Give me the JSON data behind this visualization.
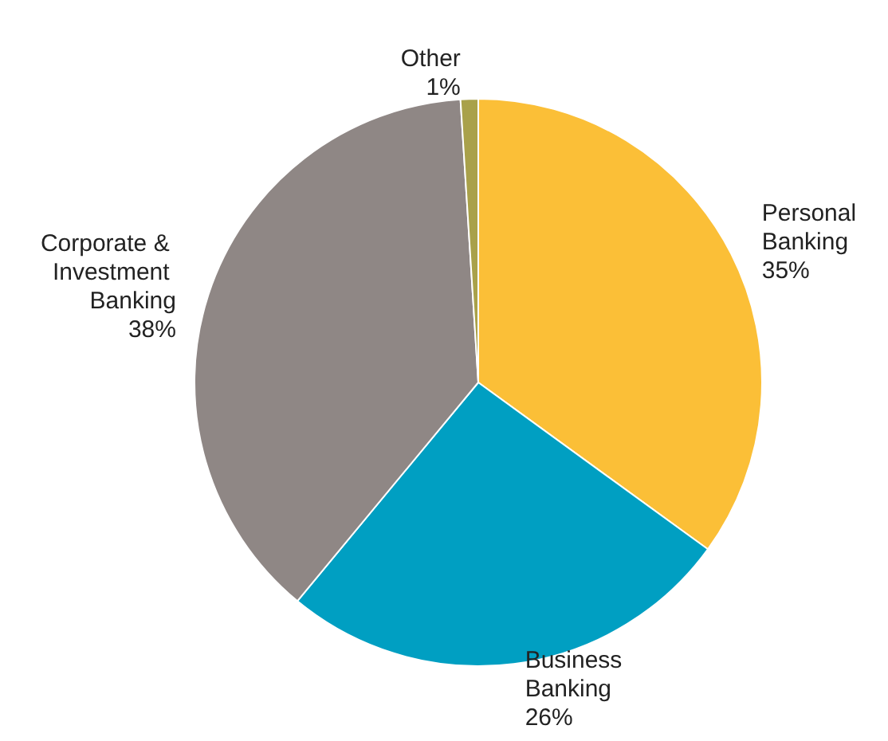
{
  "chart_data": {
    "type": "pie",
    "categories": [
      "Personal Banking",
      "Business Banking",
      "Corporate & Investment Banking",
      "Other"
    ],
    "values": [
      35,
      26,
      38,
      1
    ],
    "value_labels": [
      "35%",
      "26%",
      "38%",
      "1%"
    ],
    "colors": [
      "#fbbf37",
      "#009fc2",
      "#8f8785",
      "#a9a14a"
    ],
    "legend": false
  }
}
